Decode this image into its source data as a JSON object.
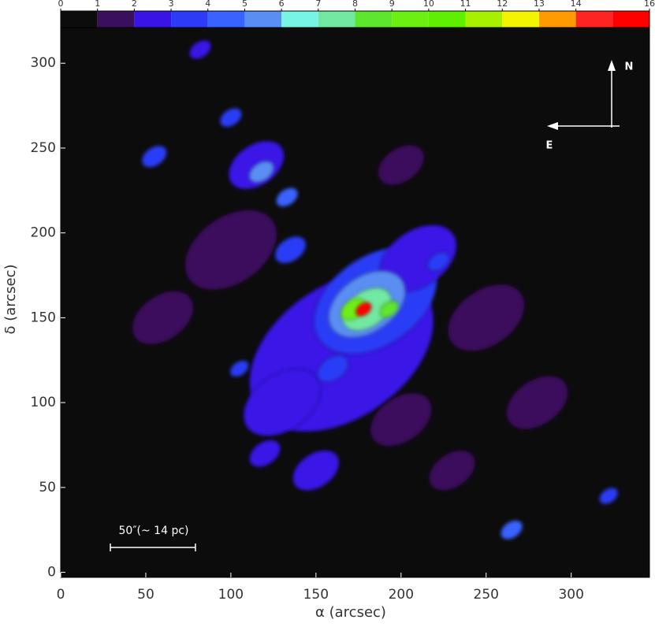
{
  "chart_data": {
    "type": "image",
    "xlabel": "α (arcsec)",
    "ylabel": "δ (arcsec)",
    "xlim": [
      0,
      346
    ],
    "ylim": [
      -3,
      321
    ],
    "xticks": [
      0,
      50,
      100,
      150,
      200,
      250,
      300
    ],
    "yticks": [
      0,
      50,
      100,
      150,
      200,
      250,
      300
    ],
    "background": "#0c0c0c",
    "colorbar": {
      "lim": [
        0,
        16
      ],
      "ticks": [
        0,
        1,
        2,
        3,
        4,
        5,
        6,
        7,
        8,
        9,
        10,
        11,
        12,
        13,
        14,
        16
      ],
      "colors": [
        "#0c0c0c",
        "#3a0f5c",
        "#3a14e6",
        "#2c3cf6",
        "#3a62ff",
        "#5a8ef2",
        "#78f4e4",
        "#72e8a2",
        "#5ee62e",
        "#6cf012",
        "#5ef000",
        "#a6f000",
        "#f4f400",
        "#ff9a00",
        "#ff2424",
        "#ff0000"
      ]
    },
    "sources": {
      "x": [
        165,
        185,
        100,
        250,
        60,
        280,
        200,
        200,
        230,
        130,
        150,
        120,
        210,
        115,
        180,
        135,
        160,
        105,
        133,
        100,
        82,
        55,
        222,
        322,
        265,
        118,
        180,
        193,
        172,
        178
      ],
      "y": [
        130,
        160,
        190,
        150,
        150,
        100,
        90,
        240,
        60,
        100,
        60,
        70,
        185,
        240,
        158,
        190,
        120,
        120,
        221,
        268,
        308,
        245,
        183,
        45,
        25,
        236,
        155,
        155,
        155,
        155
      ],
      "values": [
        2,
        3,
        1,
        1,
        1,
        1,
        1,
        1,
        1,
        2,
        2,
        2,
        2,
        2,
        5,
        3,
        3,
        3,
        4,
        3,
        2,
        3,
        3,
        3,
        4,
        5,
        7,
        8,
        9,
        15
      ],
      "size": [
        60,
        40,
        30,
        25,
        20,
        20,
        20,
        15,
        15,
        25,
        15,
        10,
        25,
        18,
        25,
        10,
        10,
        6,
        7,
        7,
        7,
        8,
        7,
        6,
        7,
        8,
        16,
        6,
        8,
        5
      ]
    },
    "scalebar": {
      "label": "50″(~ 14 pc)",
      "length": 50
    },
    "compass": {
      "north": "N",
      "east": "E"
    }
  }
}
